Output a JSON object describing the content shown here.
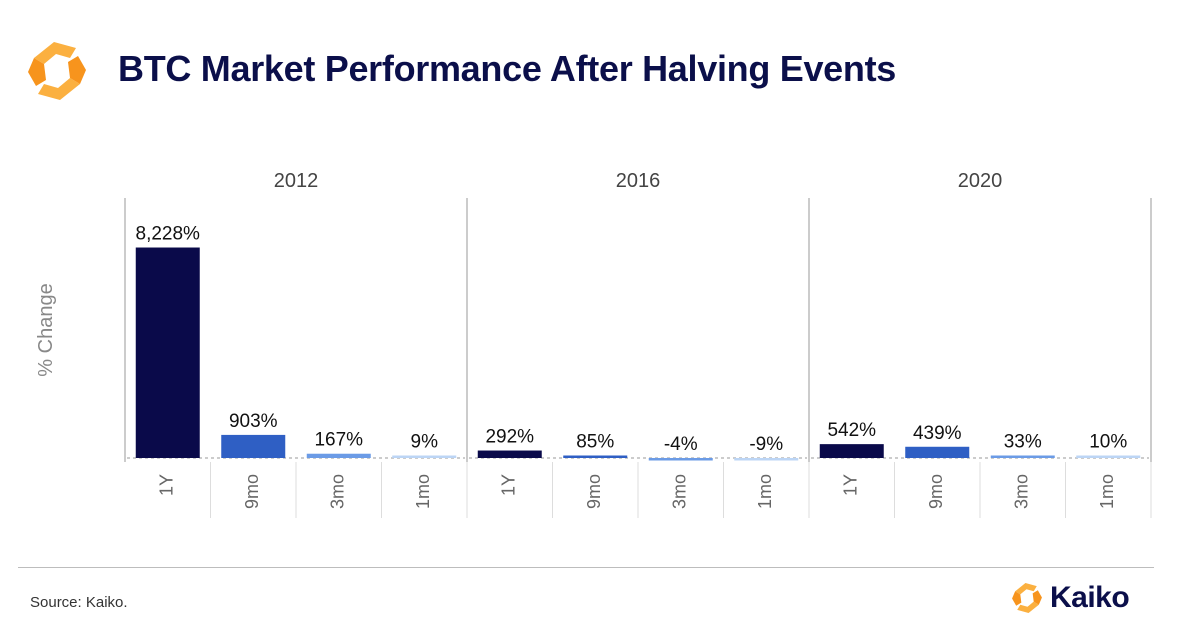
{
  "header": {
    "title": "BTC Market Performance After Halving Events"
  },
  "footer": {
    "source": "Source: Kaiko.",
    "brand": "Kaiko"
  },
  "colors": {
    "brand_orange": "#f7941d",
    "brand_orange_light": "#fbb040",
    "navy": "#0b0f4a"
  },
  "chart_data": {
    "type": "bar",
    "ylabel": "% Change",
    "facets": [
      "2012",
      "2016",
      "2020"
    ],
    "categories": [
      "1Y",
      "9mo",
      "3mo",
      "1mo"
    ],
    "values": [
      [
        8228,
        903,
        167,
        9
      ],
      [
        292,
        85,
        -4,
        -9
      ],
      [
        542,
        439,
        33,
        10
      ]
    ],
    "labels": [
      [
        "8,228%",
        "903%",
        "167%",
        "9%"
      ],
      [
        "292%",
        "85%",
        "-4%",
        "-9%"
      ],
      [
        "542%",
        "439%",
        "33%",
        "10%"
      ]
    ],
    "category_colors": [
      "#0a0a4a",
      "#2f5fc4",
      "#6b9be6",
      "#bcd5f5"
    ],
    "ylim": [
      -100,
      8600
    ],
    "grid": false,
    "zero_line": "dashed"
  }
}
